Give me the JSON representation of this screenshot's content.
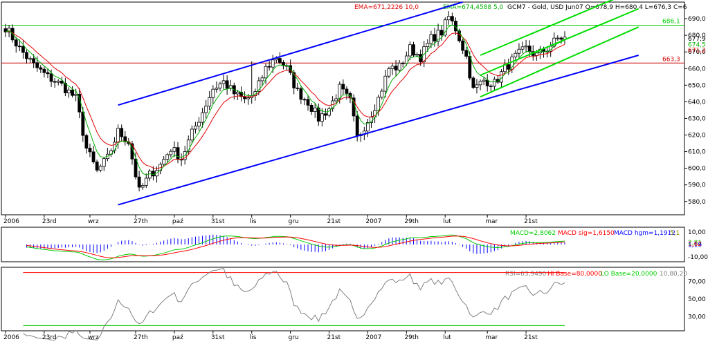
{
  "header": {
    "ema_slow": "EMA=671,2226 10,0",
    "ema_fast": "EMA=674,4588 5,0",
    "instrument": "GCM7 - Gold, USD Jun07 O=678,9 H=680,4 L=676,3 C=6"
  },
  "colors": {
    "candle": "#000000",
    "ema_slow": "#e00000",
    "ema_fast": "#00b000",
    "channel": "#0000ff",
    "small_channel": "#00e000",
    "macd": "#00cc00",
    "macd_signal": "#ff0000",
    "macd_hist": "#0000ff",
    "rsi": "#808080",
    "rsi_hi": "#ff0000",
    "rsi_lo": "#00cc00"
  },
  "chart_data": [
    {
      "type": "candlestick",
      "panel": "price",
      "ylim": [
        572,
        700
      ],
      "y_ticks": [
        580,
        590,
        600,
        610,
        620,
        630,
        640,
        650,
        660,
        670,
        680,
        690
      ],
      "y_tick_labels": [
        "580,0",
        "590,0",
        "600,0",
        "610,0",
        "620,0",
        "630,0",
        "640,0",
        "650,0",
        "660,0",
        "670,0",
        "680,0",
        "690,0"
      ],
      "x_labels": [
        "2006",
        "23rd",
        "wrz",
        "27th",
        "paź",
        "31st",
        "lis",
        "gru",
        "21st",
        "2007",
        "29th",
        "lut",
        "mar",
        "21st"
      ],
      "x_label_index": [
        0,
        11,
        24,
        37,
        48,
        59,
        70,
        81,
        92,
        103,
        114,
        125,
        137,
        148
      ],
      "bars_count": 160,
      "close_anchors": [
        [
          0,
          685
        ],
        [
          4,
          672
        ],
        [
          8,
          662
        ],
        [
          12,
          655
        ],
        [
          16,
          650
        ],
        [
          20,
          642
        ],
        [
          23,
          612
        ],
        [
          26,
          598
        ],
        [
          29,
          606
        ],
        [
          32,
          622
        ],
        [
          35,
          616
        ],
        [
          38,
          586
        ],
        [
          41,
          596
        ],
        [
          44,
          602
        ],
        [
          47,
          612
        ],
        [
          50,
          606
        ],
        [
          53,
          621
        ],
        [
          56,
          634
        ],
        [
          59,
          648
        ],
        [
          62,
          652
        ],
        [
          65,
          645
        ],
        [
          68,
          641
        ],
        [
          71,
          645
        ],
        [
          74,
          660
        ],
        [
          77,
          667
        ],
        [
          80,
          660
        ],
        [
          83,
          646
        ],
        [
          86,
          640
        ],
        [
          89,
          630
        ],
        [
          92,
          636
        ],
        [
          95,
          648
        ],
        [
          98,
          640
        ],
        [
          100,
          618
        ],
        [
          103,
          629
        ],
        [
          106,
          642
        ],
        [
          109,
          660
        ],
        [
          112,
          661
        ],
        [
          115,
          672
        ],
        [
          118,
          667
        ],
        [
          121,
          678
        ],
        [
          124,
          682
        ],
        [
          126,
          691
        ],
        [
          128,
          684
        ],
        [
          131,
          667
        ],
        [
          133,
          647
        ],
        [
          136,
          653
        ],
        [
          139,
          651
        ],
        [
          142,
          660
        ],
        [
          145,
          667
        ],
        [
          148,
          672
        ],
        [
          151,
          668
        ],
        [
          154,
          672
        ],
        [
          157,
          678
        ],
        [
          159,
          679
        ]
      ],
      "horizontal_levels": [
        {
          "value": 686.1,
          "label": "686,1",
          "color": "#00cc00"
        },
        {
          "value": 663.3,
          "label": "663,3",
          "color": "#cc0000"
        }
      ],
      "right_labels": {
        "last": "677,9",
        "ema_fast_last": "674,5",
        "ema_slow_last": "671,2"
      },
      "channel_lines": [
        {
          "name": "",
          "color": "#0000ff",
          "points": [
            [
              32,
              578
            ],
            [
              180,
              668
            ]
          ]
        },
        {
          "name": "",
          "color": "#0000ff",
          "points": [
            [
              32,
              638
            ],
            [
              130,
              700
            ]
          ]
        },
        {
          "name": "",
          "color": "#00dd00",
          "points": [
            [
              135,
              643
            ],
            [
              180,
              685
            ]
          ]
        },
        {
          "name": "",
          "color": "#00dd00",
          "points": [
            [
              135,
              656
            ],
            [
              180,
              696
            ]
          ]
        },
        {
          "name": "",
          "color": "#00dd00",
          "points": [
            [
              135,
              668
            ],
            [
              180,
              708
            ]
          ]
        }
      ],
      "series": [
        {
          "name": "EMA 10",
          "color": "#e00000"
        },
        {
          "name": "EMA 5",
          "color": "#00b000"
        }
      ]
    },
    {
      "type": "macd",
      "panel": "macd",
      "ylim": [
        -14,
        14
      ],
      "y_ticks": [
        10,
        -10
      ],
      "y_tick_labels": [
        "10,00",
        "-10,00"
      ],
      "labels": {
        "macd": "MACD=2,8062",
        "signal": "MACD sig=1,6150",
        "hist": "MACD hgm=1,1912",
        "params": "5,1"
      },
      "right_labels": [
        "2,81",
        "1,62",
        "1,19"
      ]
    },
    {
      "type": "rsi",
      "panel": "rsi",
      "ylim": [
        14,
        86
      ],
      "y_ticks": [
        70,
        50,
        30
      ],
      "y_tick_labels": [
        "70,00",
        "50,00",
        "30,00"
      ],
      "labels": {
        "rsi": "RSI=63,9490",
        "hi": "HI Base=80,0000",
        "lo": "LO Base=20,0000",
        "params": "10,80,20"
      },
      "hi_base": 80,
      "lo_base": 20
    }
  ]
}
